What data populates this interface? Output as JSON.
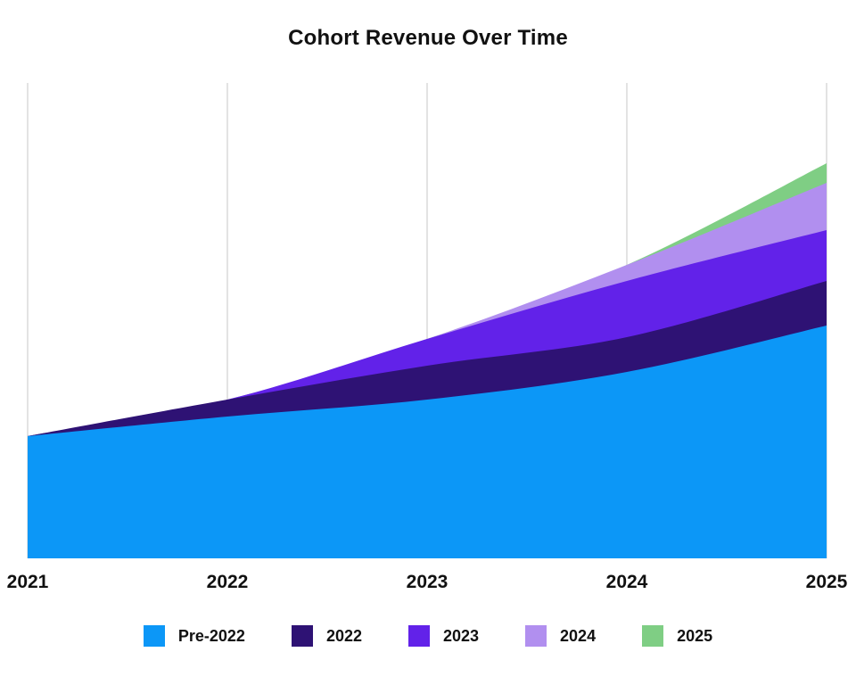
{
  "title": "Cohort Revenue Over Time",
  "colors": {
    "background": "#ffffff",
    "gridline": "#e3e3e3",
    "text": "#111111",
    "series": {
      "pre_2022": "#0c97f7",
      "cohort_2022": "#2e1274",
      "cohort_2023": "#6222e9",
      "cohort_2024": "#b18fef",
      "cohort_2025": "#7fce84"
    }
  },
  "chart_data": {
    "type": "area",
    "stacked": true,
    "title": "Cohort Revenue Over Time",
    "xlabel": "",
    "ylabel": "",
    "categories": [
      "2021",
      "2022",
      "2023",
      "2024",
      "2025"
    ],
    "series": [
      {
        "name": "Pre-2022",
        "color": "#0c97f7",
        "values": [
          137,
          159,
          178,
          209,
          261
        ]
      },
      {
        "name": "2022",
        "color": "#2e1274",
        "values": [
          0,
          19,
          38,
          39,
          50
        ]
      },
      {
        "name": "2023",
        "color": "#6222e9",
        "values": [
          0,
          0,
          30,
          63,
          57
        ]
      },
      {
        "name": "2024",
        "color": "#b18fef",
        "values": [
          0,
          0,
          0,
          18,
          53
        ]
      },
      {
        "name": "2025",
        "color": "#7fce84",
        "values": [
          0,
          0,
          0,
          0,
          22
        ]
      }
    ],
    "totals": [
      137,
      178,
      246,
      329,
      443
    ],
    "ylim": [
      0,
      533
    ],
    "y_axis_labels_shown": false,
    "grid": "vertical",
    "legend_position": "bottom",
    "curve": "smooth"
  }
}
